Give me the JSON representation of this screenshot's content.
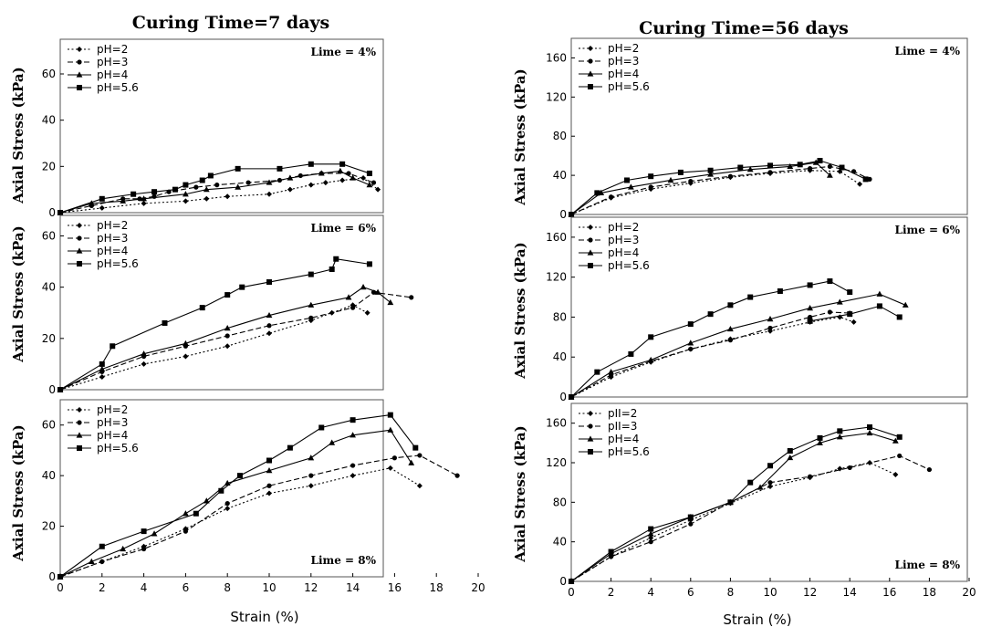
{
  "figure": {
    "left_title": "Curing Time=7 days",
    "right_title": "Curing Time=56 days",
    "x_axis_label": "Strain (%)",
    "y_axis_label": "Axial Stress (kPa)"
  },
  "colors": {
    "line": "#000000",
    "frame": "#555555",
    "background": "#ffffff"
  },
  "chart_data": [
    {
      "type": "line",
      "curing": "7 days",
      "annotation": "Lime = 4%",
      "xlabel": "",
      "ylabel": "Axial Stress (kPa)",
      "xlim": [
        0,
        20
      ],
      "ylim": [
        0,
        75
      ],
      "yticks": [
        0,
        20,
        40,
        60
      ],
      "xticks": [],
      "legend": "top-left",
      "series": [
        {
          "name": "pH=2",
          "dash": "2,2.5",
          "marker": "diamond",
          "x": [
            0,
            2,
            4,
            6,
            7,
            8,
            10,
            11,
            12,
            12.7,
            13.5,
            14.5,
            15.2
          ],
          "y": [
            0,
            2,
            4,
            5,
            6,
            7,
            8,
            10,
            12,
            13,
            14,
            15,
            10
          ]
        },
        {
          "name": "pH=3",
          "dash": "6,3",
          "marker": "circle",
          "x": [
            0,
            1.5,
            3,
            3.8,
            4.5,
            5.2,
            6.5,
            7.5,
            9,
            10.5,
            11.5,
            12.5,
            13.8,
            15
          ],
          "y": [
            0,
            3,
            6,
            6,
            7,
            9,
            11,
            12,
            13,
            14,
            16,
            17,
            17,
            13
          ]
        },
        {
          "name": "pH=4",
          "dash": "",
          "marker": "triangle",
          "x": [
            0,
            1.5,
            3,
            4,
            6,
            7,
            8.5,
            10,
            11,
            12.5,
            13.4,
            14,
            14.8
          ],
          "y": [
            0,
            4,
            5,
            6,
            8,
            10,
            11,
            13,
            15,
            17,
            18,
            15,
            12
          ]
        },
        {
          "name": "pH=5.6",
          "dash": "",
          "marker": "square",
          "x": [
            0,
            2,
            3.5,
            4.5,
            5.5,
            6,
            6.8,
            7.2,
            8.5,
            10.5,
            12,
            13.5,
            14.8
          ],
          "y": [
            0,
            6,
            8,
            9,
            10,
            12,
            14,
            16,
            19,
            19,
            21,
            21,
            17
          ]
        }
      ]
    },
    {
      "type": "line",
      "curing": "7 days",
      "annotation": "Lime = 6%",
      "xlabel": "",
      "ylabel": "Axial Stress (kPa)",
      "xlim": [
        0,
        20
      ],
      "ylim": [
        0,
        68
      ],
      "yticks": [
        0,
        20,
        40,
        60
      ],
      "xticks": [],
      "legend": "top-left",
      "series": [
        {
          "name": "pH=2",
          "dash": "2,2.5",
          "marker": "diamond",
          "x": [
            0,
            2,
            4,
            6,
            8,
            10,
            12,
            13,
            14,
            14.7
          ],
          "y": [
            0,
            5,
            10,
            13,
            17,
            22,
            27,
            30,
            33,
            30
          ]
        },
        {
          "name": "pH=3",
          "dash": "6,3",
          "marker": "circle",
          "x": [
            0,
            2,
            4,
            6,
            8,
            10,
            12,
            14,
            15,
            16.8
          ],
          "y": [
            0,
            7,
            13,
            17,
            21,
            25,
            28,
            32,
            38,
            36
          ]
        },
        {
          "name": "pH=4",
          "dash": "",
          "marker": "triangle",
          "x": [
            0,
            2,
            4,
            6,
            8,
            10,
            12,
            13.8,
            14.5,
            15.2,
            15.8
          ],
          "y": [
            0,
            8,
            14,
            18,
            24,
            29,
            33,
            36,
            40,
            38,
            34
          ]
        },
        {
          "name": "pH=5.6",
          "dash": "",
          "marker": "square",
          "x": [
            0,
            2,
            2.5,
            5,
            6.8,
            8,
            8.7,
            10,
            12,
            13,
            13.2,
            14.8
          ],
          "y": [
            0,
            10,
            17,
            26,
            32,
            37,
            40,
            42,
            45,
            47,
            51,
            49
          ]
        }
      ]
    },
    {
      "type": "line",
      "curing": "7 days",
      "annotation": "Lime = 8%",
      "xlabel": "Strain (%)",
      "ylabel": "Axial Stress (kPa)",
      "xlim": [
        0,
        20
      ],
      "ylim": [
        0,
        70
      ],
      "yticks": [
        0,
        20,
        40,
        60
      ],
      "xticks": [
        0,
        2,
        4,
        6,
        8,
        10,
        12,
        14,
        16,
        18,
        20
      ],
      "legend": "top-left",
      "series": [
        {
          "name": "pH=2",
          "dash": "2,2.5",
          "marker": "diamond",
          "x": [
            0,
            2,
            4,
            6,
            8,
            10,
            12,
            14,
            15.8,
            17.2
          ],
          "y": [
            0,
            6,
            12,
            19,
            27,
            33,
            36,
            40,
            43,
            36
          ]
        },
        {
          "name": "pH=3",
          "dash": "6,3",
          "marker": "circle",
          "x": [
            0,
            2,
            4,
            6,
            8,
            10,
            12,
            14,
            16,
            17.2,
            19
          ],
          "y": [
            0,
            6,
            11,
            18,
            29,
            36,
            40,
            44,
            47,
            48,
            40
          ]
        },
        {
          "name": "pH=4",
          "dash": "",
          "marker": "triangle",
          "x": [
            0,
            1.5,
            3,
            4.5,
            6,
            7,
            8,
            10,
            12,
            13,
            14,
            15.8,
            16.8
          ],
          "y": [
            0,
            6,
            11,
            17,
            25,
            30,
            37,
            42,
            47,
            53,
            56,
            58,
            45
          ]
        },
        {
          "name": "pH=5.6",
          "dash": "",
          "marker": "square",
          "x": [
            0,
            2,
            4,
            6.5,
            7.7,
            8.6,
            10,
            11,
            12.5,
            14,
            15.8,
            17
          ],
          "y": [
            0,
            12,
            18,
            25,
            34,
            40,
            46,
            51,
            59,
            62,
            64,
            51
          ]
        }
      ]
    },
    {
      "type": "line",
      "curing": "56 days",
      "annotation": "Lime = 4%",
      "xlabel": "",
      "ylabel": "Axial Stress (kPa)",
      "xlim": [
        0,
        20
      ],
      "ylim": [
        0,
        180
      ],
      "yticks": [
        0,
        40,
        80,
        120,
        160
      ],
      "xticks": [],
      "legend": "top-left",
      "series": [
        {
          "name": "pH=2",
          "dash": "2,2.5",
          "marker": "diamond",
          "x": [
            0,
            2,
            4,
            6,
            8,
            10,
            12,
            13.5,
            14.5
          ],
          "y": [
            0,
            17,
            26,
            32,
            38,
            42,
            45,
            44,
            31
          ]
        },
        {
          "name": "pH=3",
          "dash": "6,3",
          "marker": "circle",
          "x": [
            0,
            2,
            4,
            6,
            8,
            10,
            12,
            13,
            14.2,
            15
          ],
          "y": [
            0,
            18,
            28,
            34,
            39,
            43,
            47,
            49,
            44,
            36
          ]
        },
        {
          "name": "pH=4",
          "dash": "",
          "marker": "triangle",
          "x": [
            0,
            1.5,
            3,
            5,
            7,
            9,
            11,
            12.3,
            13
          ],
          "y": [
            0,
            22,
            28,
            35,
            41,
            46,
            49,
            53,
            40
          ]
        },
        {
          "name": "pH=5.6",
          "dash": "",
          "marker": "square",
          "x": [
            0,
            1.3,
            2.8,
            4,
            5.5,
            7,
            8.5,
            10,
            11.5,
            12.5,
            13.6,
            14.8
          ],
          "y": [
            0,
            22,
            35,
            39,
            43,
            45,
            48,
            50,
            51,
            55,
            48,
            36
          ]
        }
      ]
    },
    {
      "type": "line",
      "curing": "56 days",
      "annotation": "Lime = 6%",
      "xlabel": "",
      "ylabel": "Axial Stress (kPa)",
      "xlim": [
        0,
        20
      ],
      "ylim": [
        0,
        180
      ],
      "yticks": [
        0,
        40,
        80,
        120,
        160
      ],
      "xticks": [],
      "legend": "top-left",
      "series": [
        {
          "name": "pH=2",
          "dash": "2,2.5",
          "marker": "diamond",
          "x": [
            0,
            2,
            4,
            6,
            8,
            10,
            12,
            13.5,
            14.2
          ],
          "y": [
            0,
            20,
            35,
            48,
            58,
            66,
            75,
            80,
            75
          ]
        },
        {
          "name": "pH=3",
          "dash": "6,3",
          "marker": "circle",
          "x": [
            0,
            2,
            4,
            6,
            8,
            10,
            12,
            13,
            14
          ],
          "y": [
            0,
            22,
            36,
            48,
            57,
            69,
            80,
            85,
            84
          ]
        },
        {
          "name": "pH=4",
          "dash": "",
          "marker": "triangle",
          "x": [
            0,
            2,
            4,
            6,
            8,
            10,
            12,
            13.5,
            15.5,
            16.8
          ],
          "y": [
            0,
            25,
            37,
            54,
            68,
            78,
            89,
            95,
            103,
            92
          ]
        },
        {
          "name": "pH=5.6",
          "dash": "",
          "marker": "square",
          "x": [
            0,
            1.3,
            3,
            4,
            6,
            7,
            8,
            9,
            10.5,
            12,
            13,
            14
          ],
          "y": [
            0,
            25,
            43,
            60,
            73,
            83,
            92,
            100,
            106,
            112,
            116,
            105
          ]
        },
        {
          "name": "",
          "dash": "",
          "marker": "square",
          "x": [
            12,
            14,
            15.5,
            16.5
          ],
          "y": [
            76,
            83,
            91,
            80
          ]
        }
      ]
    },
    {
      "type": "line",
      "curing": "56 days",
      "annotation": "Lime = 8%",
      "xlabel": "Strain (%)",
      "ylabel": "Axial Stress (kPa)",
      "xlim": [
        0,
        20
      ],
      "ylim": [
        0,
        180
      ],
      "yticks": [
        0,
        40,
        80,
        120,
        160
      ],
      "xticks": [
        0,
        2,
        4,
        6,
        8,
        10,
        12,
        14,
        16,
        18,
        20
      ],
      "legend": "top-left",
      "series": [
        {
          "name": "pII=2",
          "dash": "2,2.5",
          "marker": "diamond",
          "x": [
            0,
            2,
            4,
            6,
            8,
            10,
            12,
            13.5,
            15,
            16.3
          ],
          "y": [
            0,
            25,
            44,
            62,
            79,
            96,
            105,
            114,
            120,
            108
          ]
        },
        {
          "name": "pII=3",
          "dash": "6,3",
          "marker": "circle",
          "x": [
            0,
            2,
            4,
            6,
            8,
            10,
            12,
            14,
            16.5,
            18
          ],
          "y": [
            0,
            25,
            40,
            58,
            80,
            100,
            106,
            115,
            127,
            113
          ]
        },
        {
          "name": "pH=4",
          "dash": "",
          "marker": "triangle",
          "x": [
            0,
            2,
            4,
            6,
            8,
            9.5,
            11,
            12.5,
            13.5,
            15,
            16.3
          ],
          "y": [
            0,
            28,
            48,
            65,
            80,
            95,
            125,
            140,
            146,
            150,
            142
          ]
        },
        {
          "name": "pH=5.6",
          "dash": "",
          "marker": "square",
          "x": [
            0,
            2,
            4,
            6,
            8,
            9,
            10,
            11,
            12.5,
            13.5,
            15,
            16.5
          ],
          "y": [
            0,
            30,
            53,
            65,
            80,
            100,
            117,
            132,
            145,
            152,
            156,
            146
          ]
        }
      ]
    }
  ]
}
